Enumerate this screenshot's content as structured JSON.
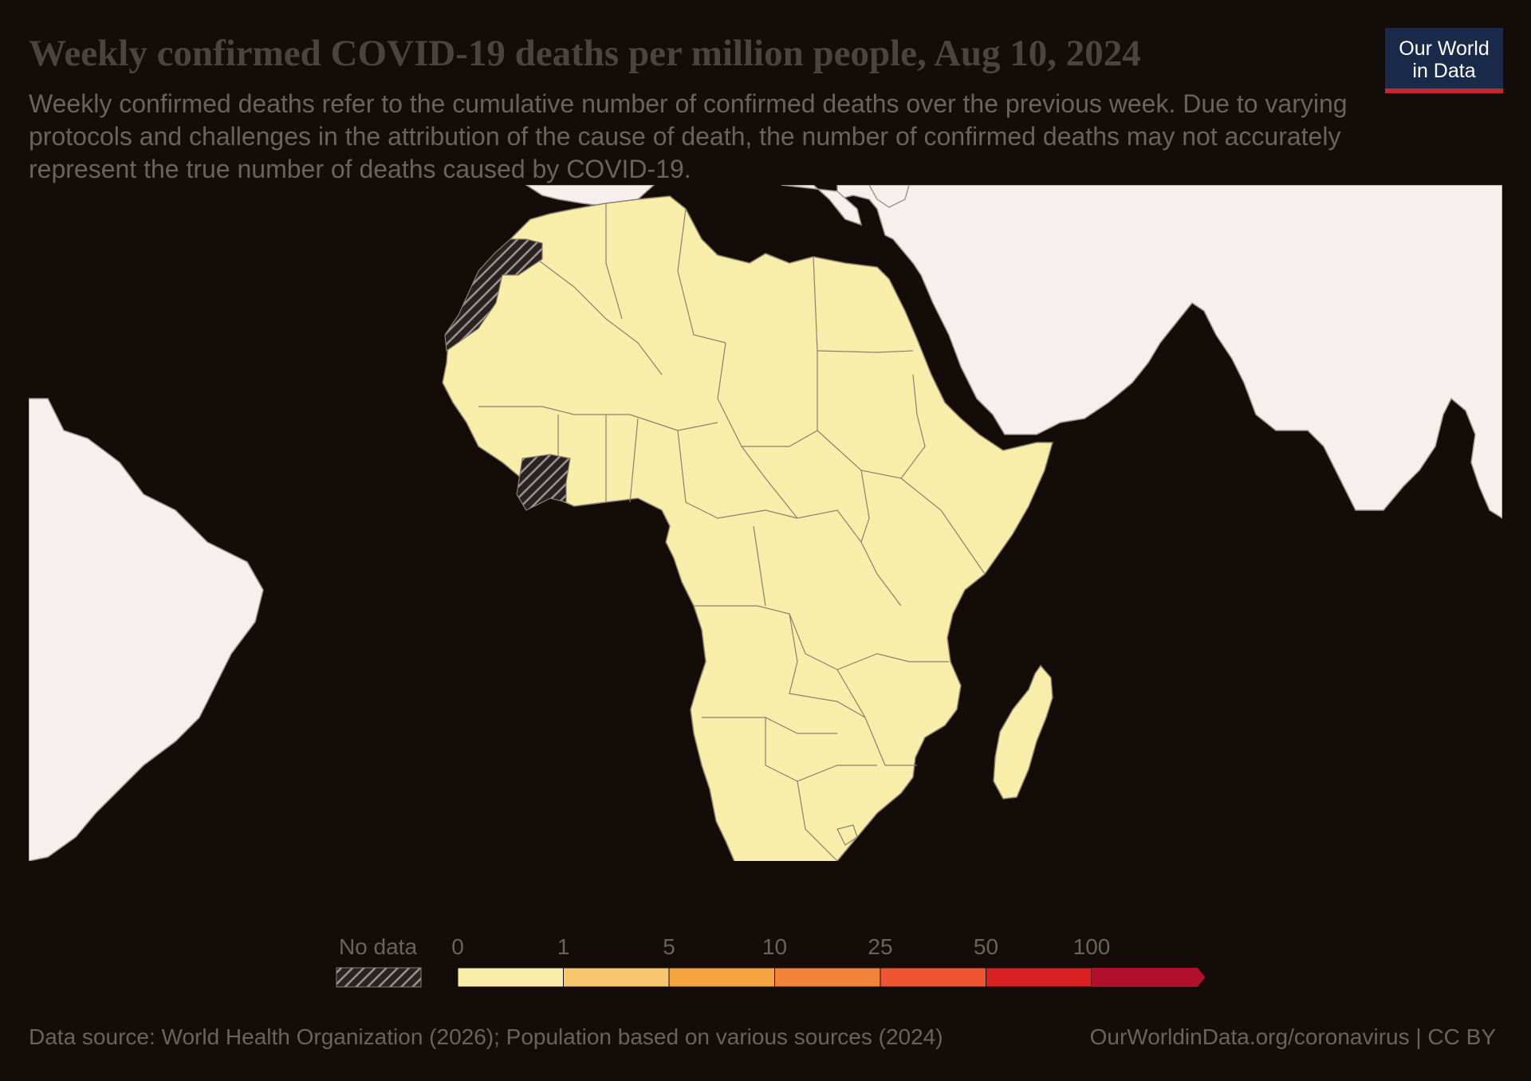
{
  "title": "Weekly confirmed COVID-19 deaths per million people, Aug 10, 2024",
  "subtitle": "Weekly confirmed deaths refer to the cumulative number of confirmed deaths over the previous week. Due to varying protocols and challenges in the attribution of the cause of death, the number of confirmed deaths may not accurately represent the true number of deaths caused by COVID-19.",
  "logo": {
    "line1": "Our World",
    "line2": "in Data"
  },
  "legend": {
    "no_data_label": "No data",
    "bins": [
      {
        "from": "0",
        "to": "1",
        "color": "#f8eeaa"
      },
      {
        "from": "1",
        "to": "5",
        "color": "#f6c76e"
      },
      {
        "from": "5",
        "to": "10",
        "color": "#f5a442"
      },
      {
        "from": "10",
        "to": "25",
        "color": "#f2843a"
      },
      {
        "from": "25",
        "to": "50",
        "color": "#ee5530"
      },
      {
        "from": "50",
        "to": "100",
        "color": "#d92022"
      },
      {
        "from": "100",
        "to": "",
        "color": "#b20f2b"
      }
    ],
    "tick_labels": [
      "0",
      "1",
      "5",
      "10",
      "25",
      "50",
      "100"
    ]
  },
  "colors": {
    "background": "#130c09",
    "africa_fill": "#f8eeaa",
    "other_land_fill": "#f7efed",
    "border": "#8a8070",
    "no_data_hatch": "#9a9290"
  },
  "regions_no_data": [
    "Western Sahara",
    "Côte d'Ivoire"
  ],
  "source": "Data source: World Health Organization (2026); Population based on various sources (2024)",
  "url": "OurWorldinData.org/coronavirus | CC BY"
}
